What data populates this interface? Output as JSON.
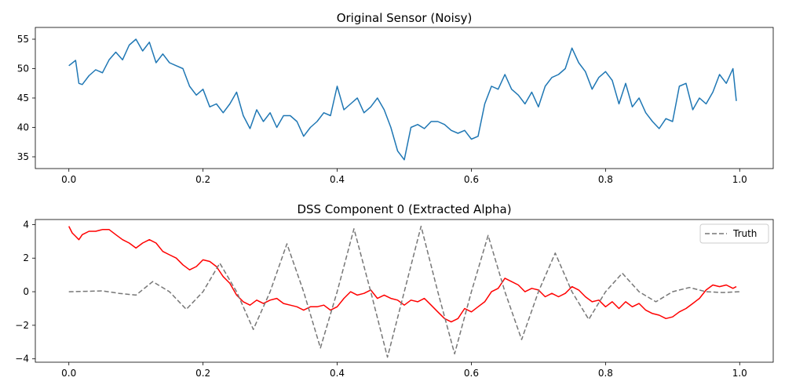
{
  "chart_data": [
    {
      "type": "line",
      "title": "Original Sensor (Noisy)",
      "xlabel": "",
      "ylabel": "",
      "xlim": [
        -0.05,
        1.05
      ],
      "ylim": [
        33,
        57
      ],
      "xticks": [
        0.0,
        0.2,
        0.4,
        0.6,
        0.8,
        1.0
      ],
      "xtick_labels": [
        "0.0",
        "0.2",
        "0.4",
        "0.6",
        "0.8",
        "1.0"
      ],
      "yticks": [
        35,
        40,
        45,
        50,
        55
      ],
      "ytick_labels": [
        "35",
        "40",
        "45",
        "50",
        "55"
      ],
      "grid": false,
      "series": [
        {
          "color": "#1f77b4",
          "linestyle": "solid",
          "x": [
            0.0,
            0.01,
            0.015,
            0.02,
            0.03,
            0.04,
            0.05,
            0.06,
            0.07,
            0.08,
            0.09,
            0.1,
            0.11,
            0.12,
            0.13,
            0.14,
            0.15,
            0.16,
            0.17,
            0.18,
            0.19,
            0.2,
            0.21,
            0.22,
            0.23,
            0.24,
            0.25,
            0.26,
            0.27,
            0.28,
            0.29,
            0.3,
            0.31,
            0.32,
            0.33,
            0.34,
            0.35,
            0.36,
            0.37,
            0.38,
            0.39,
            0.4,
            0.41,
            0.42,
            0.43,
            0.44,
            0.45,
            0.46,
            0.47,
            0.48,
            0.49,
            0.5,
            0.51,
            0.52,
            0.53,
            0.54,
            0.55,
            0.56,
            0.57,
            0.58,
            0.59,
            0.6,
            0.61,
            0.62,
            0.63,
            0.64,
            0.65,
            0.66,
            0.67,
            0.68,
            0.69,
            0.7,
            0.71,
            0.72,
            0.73,
            0.74,
            0.75,
            0.76,
            0.77,
            0.78,
            0.79,
            0.8,
            0.81,
            0.82,
            0.83,
            0.84,
            0.85,
            0.86,
            0.87,
            0.88,
            0.89,
            0.9,
            0.91,
            0.92,
            0.93,
            0.94,
            0.95,
            0.96,
            0.97,
            0.98,
            0.99,
            0.995
          ],
          "y": [
            50.5,
            51.4,
            47.5,
            47.3,
            48.8,
            49.8,
            49.3,
            51.5,
            52.8,
            51.5,
            54.0,
            55.0,
            53.0,
            54.5,
            51.0,
            52.5,
            51.0,
            50.5,
            50.0,
            47.0,
            45.5,
            46.5,
            43.5,
            44.0,
            42.5,
            44.0,
            46.0,
            42.0,
            39.8,
            43.0,
            41.0,
            42.5,
            40.0,
            42.0,
            42.0,
            41.0,
            38.5,
            40.0,
            41.0,
            42.5,
            42.0,
            47.0,
            43.0,
            44.0,
            45.0,
            42.5,
            43.5,
            45.0,
            43.0,
            40.0,
            36.0,
            34.5,
            40.0,
            40.5,
            39.8,
            41.0,
            41.0,
            40.5,
            39.5,
            39.0,
            39.5,
            38.0,
            38.5,
            44.0,
            47.0,
            46.5,
            49.0,
            46.5,
            45.5,
            44.0,
            46.0,
            43.5,
            47.0,
            48.5,
            49.0,
            50.0,
            53.5,
            51.0,
            49.5,
            46.5,
            48.5,
            49.5,
            48.0,
            44.0,
            47.5,
            43.5,
            45.0,
            42.5,
            41.0,
            39.8,
            41.5,
            41.0,
            47.0,
            47.5,
            43.0,
            45.0,
            44.0,
            46.0,
            49.0,
            47.5,
            50.0,
            44.5
          ]
        }
      ]
    },
    {
      "type": "line",
      "title": "DSS Component 0 (Extracted Alpha)",
      "xlabel": "",
      "ylabel": "",
      "xlim": [
        -0.05,
        1.05
      ],
      "ylim": [
        -4.2,
        4.3
      ],
      "xticks": [
        0.0,
        0.2,
        0.4,
        0.6,
        0.8,
        1.0
      ],
      "xtick_labels": [
        "0.0",
        "0.2",
        "0.4",
        "0.6",
        "0.8",
        "1.0"
      ],
      "yticks": [
        -4,
        -2,
        0,
        2,
        4
      ],
      "ytick_labels": [
        "−4",
        "−2",
        "0",
        "2",
        "4"
      ],
      "grid": false,
      "legend": {
        "placement": "upper-right",
        "entries": [
          "Truth"
        ]
      },
      "series": [
        {
          "color": "#ff0000",
          "linestyle": "solid",
          "x": [
            0.0,
            0.005,
            0.01,
            0.015,
            0.02,
            0.03,
            0.04,
            0.05,
            0.06,
            0.07,
            0.08,
            0.09,
            0.1,
            0.11,
            0.12,
            0.13,
            0.14,
            0.15,
            0.16,
            0.17,
            0.18,
            0.19,
            0.2,
            0.21,
            0.22,
            0.23,
            0.24,
            0.25,
            0.26,
            0.27,
            0.28,
            0.29,
            0.3,
            0.31,
            0.32,
            0.33,
            0.34,
            0.35,
            0.36,
            0.37,
            0.38,
            0.39,
            0.4,
            0.41,
            0.42,
            0.43,
            0.44,
            0.45,
            0.46,
            0.47,
            0.48,
            0.49,
            0.5,
            0.51,
            0.52,
            0.53,
            0.54,
            0.55,
            0.56,
            0.57,
            0.58,
            0.59,
            0.6,
            0.61,
            0.62,
            0.63,
            0.64,
            0.65,
            0.66,
            0.67,
            0.68,
            0.69,
            0.7,
            0.71,
            0.72,
            0.73,
            0.74,
            0.75,
            0.76,
            0.77,
            0.78,
            0.79,
            0.8,
            0.81,
            0.82,
            0.83,
            0.84,
            0.85,
            0.86,
            0.87,
            0.88,
            0.89,
            0.9,
            0.91,
            0.92,
            0.93,
            0.94,
            0.95,
            0.96,
            0.97,
            0.98,
            0.99,
            0.995
          ],
          "y": [
            3.9,
            3.5,
            3.3,
            3.1,
            3.4,
            3.6,
            3.6,
            3.7,
            3.7,
            3.4,
            3.1,
            2.9,
            2.6,
            2.9,
            3.1,
            2.9,
            2.4,
            2.2,
            2.0,
            1.6,
            1.3,
            1.5,
            1.9,
            1.8,
            1.5,
            0.9,
            0.5,
            -0.2,
            -0.6,
            -0.8,
            -0.5,
            -0.7,
            -0.5,
            -0.4,
            -0.7,
            -0.8,
            -0.9,
            -1.1,
            -0.9,
            -0.9,
            -0.8,
            -1.1,
            -0.9,
            -0.4,
            0.0,
            -0.2,
            -0.1,
            0.1,
            -0.4,
            -0.2,
            -0.4,
            -0.5,
            -0.8,
            -0.5,
            -0.6,
            -0.4,
            -0.8,
            -1.2,
            -1.6,
            -1.8,
            -1.6,
            -1.0,
            -1.2,
            -0.9,
            -0.6,
            0.0,
            0.2,
            0.8,
            0.6,
            0.4,
            0.0,
            0.2,
            0.1,
            -0.3,
            -0.1,
            -0.3,
            -0.1,
            0.3,
            0.1,
            -0.3,
            -0.6,
            -0.5,
            -0.9,
            -0.6,
            -1.0,
            -0.6,
            -0.9,
            -0.7,
            -1.1,
            -1.3,
            -1.4,
            -1.6,
            -1.5,
            -1.2,
            -1.0,
            -0.7,
            -0.4,
            0.1,
            0.4,
            0.3,
            0.4,
            0.2,
            0.3
          ]
        },
        {
          "name": "Truth",
          "color": "#777777",
          "linestyle": "dashed",
          "x": [
            0.0,
            0.025,
            0.05,
            0.075,
            0.1,
            0.125,
            0.15,
            0.175,
            0.2,
            0.225,
            0.25,
            0.275,
            0.3,
            0.325,
            0.35,
            0.375,
            0.4,
            0.425,
            0.45,
            0.475,
            0.5,
            0.525,
            0.55,
            0.575,
            0.6,
            0.625,
            0.65,
            0.675,
            0.7,
            0.725,
            0.75,
            0.775,
            0.8,
            0.825,
            0.85,
            0.875,
            0.9,
            0.925,
            0.95,
            0.975,
            1.0
          ],
          "y": [
            0.0,
            0.02,
            0.05,
            -0.1,
            -0.2,
            0.6,
            0.0,
            -1.05,
            0.0,
            1.7,
            0.0,
            -2.25,
            0.0,
            2.85,
            0.0,
            -3.35,
            0.0,
            3.75,
            0.0,
            -3.9,
            0.0,
            3.9,
            0.0,
            -3.7,
            0.0,
            3.35,
            0.0,
            -2.85,
            0.0,
            2.3,
            0.0,
            -1.65,
            0.0,
            1.1,
            0.0,
            -0.6,
            0.0,
            0.25,
            0.0,
            -0.05,
            0.0
          ]
        }
      ]
    }
  ]
}
